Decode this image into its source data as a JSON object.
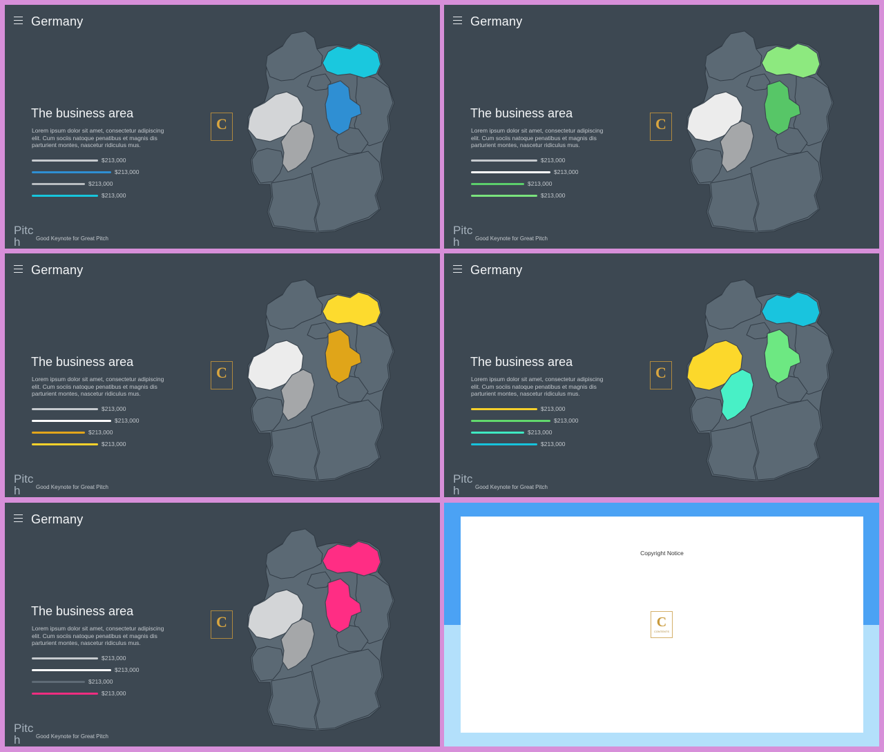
{
  "slides": [
    {
      "title": "Germany",
      "heading": "The business area",
      "body": "Lorem ipsum dolor sit amet, consectetur adipiscing elit. Cum sociis natoque penatibus et magnis dis parturient montes, nascetur ridiculus mus.",
      "bars": [
        {
          "value": "$213,000",
          "fraction": 0.63,
          "color": "#c7cbcf"
        },
        {
          "value": "$213,000",
          "fraction": 0.75,
          "color": "#2f8fd3"
        },
        {
          "value": "$213,000",
          "fraction": 0.5,
          "color": "#b9bdc1"
        },
        {
          "value": "$213,000",
          "fraction": 0.63,
          "color": "#17c5dc"
        }
      ],
      "region_colors": {
        "north": "#1ac8de",
        "middle": "#2f8fd3",
        "west": "#d3d5d7",
        "south": "#a5a7a9"
      },
      "brand": "Pitch",
      "tagline": "Good Keynote for Great Pitch"
    },
    {
      "title": "Germany",
      "heading": "The business area",
      "body": "Lorem ipsum dolor sit amet, consectetur adipiscing elit. Cum sociis natoque penatibus et magnis dis parturient montes, nascetur ridiculus mus.",
      "bars": [
        {
          "value": "$213,000",
          "fraction": 0.63,
          "color": "#c7cbcf"
        },
        {
          "value": "$213,000",
          "fraction": 0.75,
          "color": "#ffffff"
        },
        {
          "value": "$213,000",
          "fraction": 0.5,
          "color": "#5ccf6c"
        },
        {
          "value": "$213,000",
          "fraction": 0.63,
          "color": "#7be37d"
        }
      ],
      "region_colors": {
        "north": "#8de97f",
        "middle": "#57c667",
        "west": "#ececec",
        "south": "#a5a7a9"
      },
      "brand": "Pitch",
      "tagline": "Good Keynote for Great Pitch"
    },
    {
      "title": "Germany",
      "heading": "The business area",
      "body": "Lorem ipsum dolor sit amet, consectetur adipiscing elit. Cum sociis natoque penatibus et magnis dis parturient montes, nascetur ridiculus mus.",
      "bars": [
        {
          "value": "$213,000",
          "fraction": 0.63,
          "color": "#c7cbcf"
        },
        {
          "value": "$213,000",
          "fraction": 0.75,
          "color": "#ffffff"
        },
        {
          "value": "$213,000",
          "fraction": 0.5,
          "color": "#e3a51b"
        },
        {
          "value": "$213,000",
          "fraction": 0.63,
          "color": "#fcd22b"
        }
      ],
      "region_colors": {
        "north": "#fddb2e",
        "middle": "#e0a519",
        "west": "#ececec",
        "south": "#a5a7a9"
      },
      "brand": "Pitch",
      "tagline": "Good Keynote for Great Pitch"
    },
    {
      "title": "Germany",
      "heading": "The business area",
      "body": "Lorem ipsum dolor sit amet, consectetur adipiscing elit. Cum sociis natoque penatibus et magnis dis parturient montes, nascetur ridiculus mus.",
      "bars": [
        {
          "value": "$213,000",
          "fraction": 0.63,
          "color": "#f5d02b"
        },
        {
          "value": "$213,000",
          "fraction": 0.75,
          "color": "#62d96d"
        },
        {
          "value": "$213,000",
          "fraction": 0.5,
          "color": "#3fe8c2"
        },
        {
          "value": "$213,000",
          "fraction": 0.63,
          "color": "#16c3dc"
        }
      ],
      "region_colors": {
        "north": "#19c4de",
        "middle": "#6de882",
        "west": "#fcd82b",
        "south": "#48f0c6"
      },
      "brand": "Pitch",
      "tagline": "Good Keynote for Great Pitch"
    },
    {
      "title": "Germany",
      "heading": "The business area",
      "body": "Lorem ipsum dolor sit amet, consectetur adipiscing elit. Cum sociis natoque penatibus et magnis dis parturient montes, nascetur ridiculus mus.",
      "bars": [
        {
          "value": "$213,000",
          "fraction": 0.63,
          "color": "#c7cbcf"
        },
        {
          "value": "$213,000",
          "fraction": 0.75,
          "color": "#ffffff"
        },
        {
          "value": "$213,000",
          "fraction": 0.5,
          "color": "#5f6b76"
        },
        {
          "value": "$213,000",
          "fraction": 0.63,
          "color": "#ef2d80"
        }
      ],
      "region_colors": {
        "north": "#ff2d84",
        "middle": "#ff2d84",
        "west": "#d3d5d7",
        "south": "#a5a7a9"
      },
      "brand": "Pitch",
      "tagline": "Good Keynote for Great Pitch"
    }
  ],
  "copyright": {
    "title": "Copyright Notice",
    "logo_text": "CONTENTS"
  },
  "colors": {
    "slide_bg": "#3d4852",
    "map_base": "#5b6974",
    "frame": "#d78fd9"
  }
}
